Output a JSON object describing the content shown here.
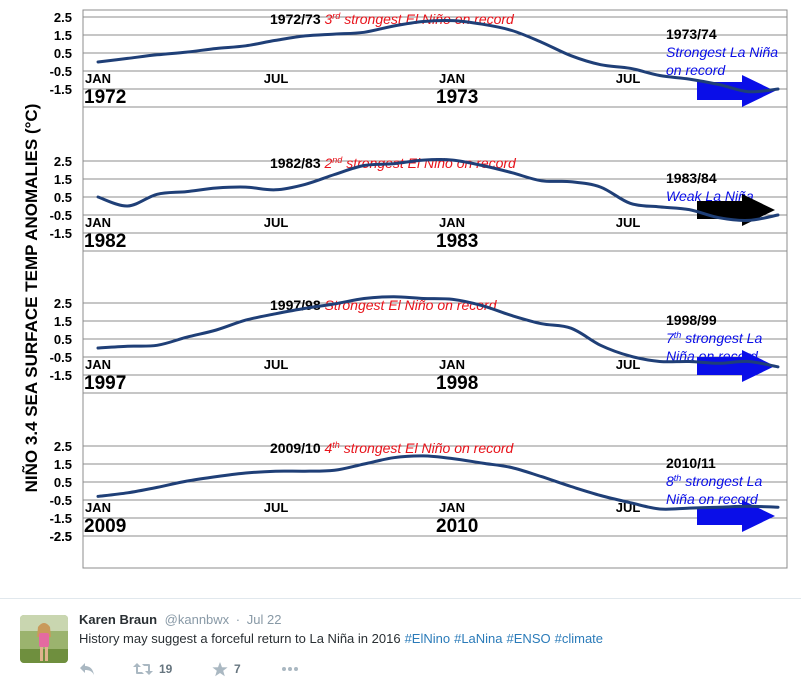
{
  "chart_data": {
    "type": "line",
    "ylabel": "NIÑO 3.4 SEA SURFACE TEMP ANOMALIES (°C)",
    "y_ticks": [
      "2.5",
      "1.5",
      "0.5",
      "-0.5",
      "-1.5",
      "-2.5"
    ],
    "month_labels": [
      "JAN",
      "JUL",
      "JAN",
      "JUL"
    ],
    "ylim": [
      -2.5,
      2.5
    ],
    "grid": true,
    "line_color": "#1f3f77",
    "panels": [
      {
        "event_label": "1972/73",
        "ordinal": "3",
        "ordinal_suffix": "rd",
        "event_desc": "strongest El Niño on record",
        "event_color": "#e8131b",
        "year_start": "1972",
        "year_end": "1973",
        "outcome_title": "1973/74",
        "outcome_lines": [
          "Strongest La Niña",
          "on record"
        ],
        "outcome_color": "#0a0ee8",
        "arrow_color": "#0a0ee8",
        "series": {
          "name": "1972-73",
          "x": [
            0,
            1,
            2,
            3,
            4,
            5,
            6,
            7,
            8,
            9,
            10,
            11,
            12,
            13,
            14,
            15,
            16,
            17,
            18,
            19,
            20,
            21,
            22,
            23
          ],
          "values": [
            -0.5,
            -0.3,
            -0.1,
            0.05,
            0.25,
            0.4,
            0.7,
            0.95,
            1.05,
            1.15,
            1.5,
            1.75,
            1.8,
            1.6,
            1.25,
            0.6,
            -0.15,
            -0.65,
            -0.85,
            -1.25,
            -1.45,
            -1.75,
            -2.15,
            -2.0
          ]
        }
      },
      {
        "event_label": "1982/83",
        "ordinal": "2",
        "ordinal_suffix": "nd",
        "event_desc": "strongest El Niño on record",
        "event_color": "#e8131b",
        "year_start": "1982",
        "year_end": "1983",
        "outcome_title": "1983/84",
        "outcome_lines": [
          "Weak La Niña"
        ],
        "outcome_color": "#0a0ee8",
        "arrow_color": "#000000",
        "series": {
          "name": "1982-83",
          "x": [
            0,
            1,
            2,
            3,
            4,
            5,
            6,
            7,
            8,
            9,
            10,
            11,
            12,
            13,
            14,
            15,
            16,
            17,
            18,
            19,
            20,
            21,
            22,
            23
          ],
          "values": [
            0.0,
            -0.5,
            0.15,
            0.3,
            0.5,
            0.55,
            0.4,
            0.7,
            1.25,
            1.75,
            1.85,
            2.05,
            2.05,
            1.75,
            1.35,
            0.9,
            0.85,
            0.55,
            -0.35,
            -0.55,
            -0.7,
            -1.15,
            -1.3,
            -1.0
          ]
        }
      },
      {
        "event_label": "1997/98",
        "ordinal": "",
        "ordinal_suffix": "",
        "event_desc": "Strongest El Niño on record",
        "event_color": "#e8131b",
        "year_start": "1997",
        "year_end": "1998",
        "outcome_title": "1998/99",
        "ordinal2": "7",
        "ordinal2_suffix": "th",
        "outcome_lines": [
          "strongest La",
          "Niña on record"
        ],
        "outcome_color": "#0a0ee8",
        "arrow_color": "#0a0ee8",
        "series": {
          "name": "1997-98",
          "x": [
            0,
            1,
            2,
            3,
            4,
            5,
            6,
            7,
            8,
            9,
            10,
            11,
            12,
            13,
            14,
            15,
            16,
            17,
            18,
            19,
            20,
            21,
            22,
            23
          ],
          "values": [
            -0.5,
            -0.4,
            -0.35,
            0.1,
            0.5,
            1.05,
            1.4,
            1.7,
            1.95,
            2.25,
            2.35,
            2.25,
            2.2,
            1.85,
            1.3,
            0.85,
            0.6,
            -0.35,
            -0.95,
            -1.25,
            -1.25,
            -1.35,
            -1.25,
            -1.55
          ]
        }
      },
      {
        "event_label": "2009/10",
        "ordinal": "4",
        "ordinal_suffix": "th",
        "event_desc": "strongest El Niño on record",
        "event_color": "#e8131b",
        "year_start": "2009",
        "year_end": "2010",
        "outcome_title": "2010/11",
        "ordinal2": "8",
        "ordinal2_suffix": "th",
        "outcome_lines": [
          "strongest La",
          "Niña on record"
        ],
        "outcome_color": "#0a0ee8",
        "arrow_color": "#0a0ee8",
        "series": {
          "name": "2009-10",
          "x": [
            0,
            1,
            2,
            3,
            4,
            5,
            6,
            7,
            8,
            9,
            10,
            11,
            12,
            13,
            14,
            15,
            16,
            17,
            18,
            19,
            20,
            21,
            22,
            23
          ],
          "values": [
            -0.8,
            -0.6,
            -0.3,
            0.05,
            0.3,
            0.5,
            0.6,
            0.6,
            0.65,
            1.0,
            1.35,
            1.45,
            1.3,
            1.05,
            0.8,
            0.3,
            -0.25,
            -0.75,
            -1.15,
            -1.5,
            -1.45,
            -1.4,
            -1.35,
            -1.4
          ]
        }
      }
    ]
  },
  "tweet": {
    "name": "Karen Braun",
    "handle": "@kannbwx",
    "dot": "·",
    "time": "Jul 22",
    "text": "History may suggest a forceful return to La Niña in 2016",
    "hashtags": [
      "#ElNino",
      "#LaNina",
      "#ENSO",
      "#climate"
    ],
    "retweets": "19",
    "favorites": "7",
    "link_color": "#2b7bb9"
  },
  "icons": [
    "reply-icon",
    "retweet-icon",
    "favorite-icon",
    "more-icon"
  ]
}
